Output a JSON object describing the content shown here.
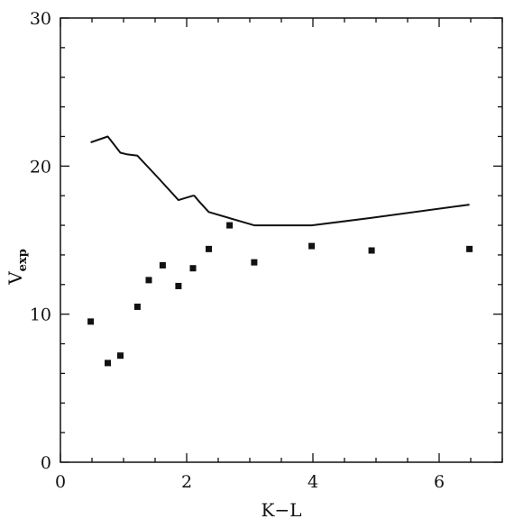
{
  "chart_data": {
    "type": "scatter",
    "xlabel": "K−L",
    "ylabel_main": "V",
    "ylabel_sub": "exp",
    "xlim": [
      0,
      7
    ],
    "ylim": [
      0,
      30
    ],
    "grid": false,
    "x_ticks": [
      0,
      2,
      4,
      6
    ],
    "y_ticks": [
      0,
      10,
      20,
      30
    ],
    "x_tick_labels": [
      "0",
      "2",
      "4",
      "6"
    ],
    "y_tick_labels": [
      "0",
      "10",
      "20",
      "30"
    ],
    "x_minor_step": 0.5,
    "y_minor_step": 2,
    "series": [
      {
        "kind": "points",
        "x": [
          0.48,
          0.75,
          0.95,
          1.22,
          1.4,
          1.62,
          1.87,
          2.1,
          2.35,
          2.68,
          3.07,
          3.98,
          4.93,
          6.48
        ],
        "y": [
          9.5,
          6.7,
          7.2,
          10.5,
          12.3,
          13.3,
          11.9,
          13.1,
          14.4,
          16.0,
          13.5,
          14.6,
          14.3,
          14.4
        ]
      },
      {
        "kind": "line",
        "x": [
          0.48,
          0.75,
          0.95,
          1.05,
          1.22,
          1.55,
          1.87,
          2.1,
          2.12,
          2.2,
          2.35,
          3.07,
          3.98,
          4.93,
          6.48
        ],
        "y": [
          21.6,
          22.0,
          20.9,
          20.8,
          20.7,
          19.2,
          17.7,
          18.0,
          18.0,
          17.6,
          16.9,
          16.0,
          16.0,
          16.5,
          17.4
        ]
      }
    ]
  }
}
